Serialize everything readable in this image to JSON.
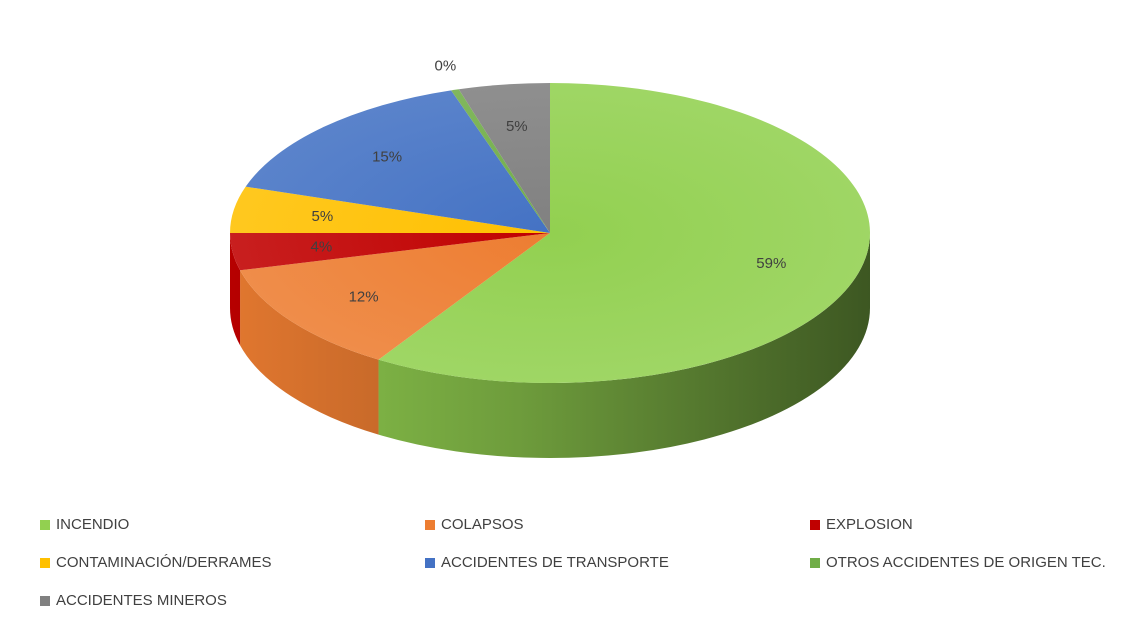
{
  "chart_data": {
    "type": "pie",
    "style": "3d",
    "title": "",
    "legend_position": "bottom",
    "slices": [
      {
        "label": "INCENDIO",
        "value": 59,
        "display": "59%",
        "color": "#92D050"
      },
      {
        "label": "COLAPSOS",
        "value": 12,
        "display": "12%",
        "color": "#ED7D31"
      },
      {
        "label": "EXPLOSION",
        "value": 4,
        "display": "4%",
        "color": "#C00000"
      },
      {
        "label": "CONTAMINACIÓN/DERRAMES",
        "value": 5,
        "display": "5%",
        "color": "#FFC000"
      },
      {
        "label": "ACCIDENTES DE TRANSPORTE",
        "value": 15,
        "display": "15%",
        "color": "#4472C4"
      },
      {
        "label": "OTROS ACCIDENTES DE ORIGEN TEC.",
        "value": 0.4,
        "display": "0%",
        "color": "#70AD47"
      },
      {
        "label": "ACCIDENTES MINEROS",
        "value": 4.6,
        "display": "5%",
        "color": "#808080"
      }
    ]
  }
}
